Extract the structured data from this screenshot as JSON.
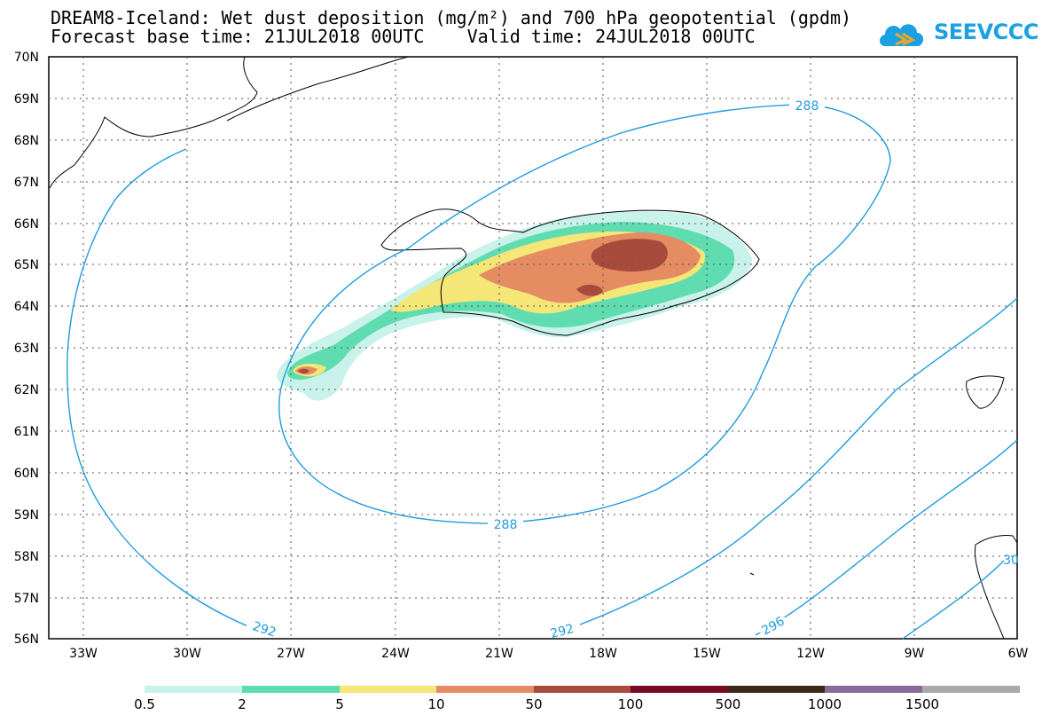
{
  "title_line1": "DREAM8-Iceland: Wet dust deposition (mg/m²) and 700 hPa geopotential (gpdm)",
  "title_line2": "Forecast base time: 21JUL2018 00UTC    Valid time: 24JUL2018 00UTC",
  "logo_text": "SEEVCCC",
  "lat_labels": [
    "70N",
    "69N",
    "68N",
    "67N",
    "66N",
    "65N",
    "64N",
    "63N",
    "62N",
    "61N",
    "60N",
    "59N",
    "58N",
    "57N",
    "56N"
  ],
  "lon_labels": [
    "33W",
    "30W",
    "27W",
    "24W",
    "21W",
    "18W",
    "15W",
    "12W",
    "9W",
    "6W"
  ],
  "contour_labels": [
    "288",
    "288",
    "292",
    "292",
    "296",
    "30"
  ],
  "colorbar": {
    "colors": [
      "#c8f2ea",
      "#5fdcb0",
      "#f5e678",
      "#e58c62",
      "#a84a3c",
      "#7a0a24",
      "#3a2818",
      "#8a6a9a",
      "#aaaaaa"
    ],
    "labels": [
      "0.5",
      "2",
      "5",
      "10",
      "50",
      "100",
      "500",
      "1000",
      "1500"
    ]
  },
  "colors": {
    "contour": "#1e9be0",
    "coast": "#000000",
    "logo": "#1ba1e2"
  }
}
